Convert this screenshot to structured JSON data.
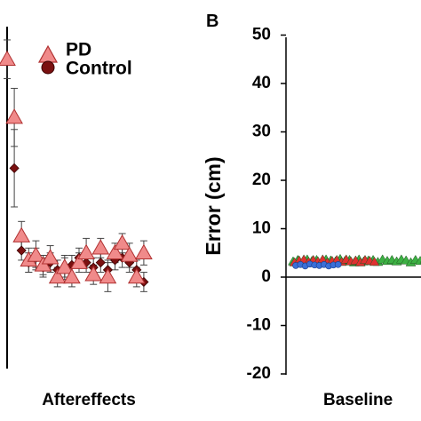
{
  "colors": {
    "pd_fill": "#f08a8a",
    "pd_stroke": "#b03030",
    "control_fill": "#7a1010",
    "control_stroke": "#3a0000",
    "error_bar": "#444444",
    "axis": "#000000",
    "green": "#3cb043",
    "red": "#e03030",
    "blue": "#3a6fd8"
  },
  "chart_data": [
    {
      "panel_label": "",
      "type": "scatter",
      "xlabel": "Aftereffects",
      "legend": {
        "placement": "top-right",
        "entries": [
          "PD",
          "Control"
        ]
      },
      "series": [
        {
          "name": "PD",
          "marker": "triangle",
          "points": [
            {
              "x": 0,
              "y": 45,
              "err": 4
            },
            {
              "x": 1,
              "y": 33,
              "err": 6
            },
            {
              "x": 2,
              "y": 8.5,
              "err": 3
            },
            {
              "x": 3,
              "y": 3.5,
              "err": 2.5
            },
            {
              "x": 4,
              "y": 4.5,
              "err": 3
            },
            {
              "x": 5,
              "y": 2.5,
              "err": 2
            },
            {
              "x": 6,
              "y": 4,
              "err": 2.5
            },
            {
              "x": 7,
              "y": 0,
              "err": 2
            },
            {
              "x": 8,
              "y": 2,
              "err": 2.5
            },
            {
              "x": 9,
              "y": 0,
              "err": 2
            },
            {
              "x": 10,
              "y": 3,
              "err": 2
            },
            {
              "x": 11,
              "y": 5,
              "err": 3
            },
            {
              "x": 12,
              "y": 0.5,
              "err": 2
            },
            {
              "x": 13,
              "y": 6,
              "err": 2
            },
            {
              "x": 14,
              "y": 0,
              "err": 3
            },
            {
              "x": 15,
              "y": 5,
              "err": 2
            },
            {
              "x": 16,
              "y": 7,
              "err": 2
            },
            {
              "x": 17,
              "y": 4.5,
              "err": 2.5
            },
            {
              "x": 18,
              "y": 0,
              "err": 2
            },
            {
              "x": 19,
              "y": 5,
              "err": 2.5
            }
          ]
        },
        {
          "name": "Control",
          "marker": "diamond",
          "points": [
            {
              "x": 1,
              "y": 22.5,
              "err": 8
            },
            {
              "x": 2,
              "y": 5.5,
              "err": 2
            },
            {
              "x": 3,
              "y": 3,
              "err": 2
            },
            {
              "x": 4,
              "y": 4,
              "err": 2
            },
            {
              "x": 5,
              "y": 2,
              "err": 2
            },
            {
              "x": 6,
              "y": 3,
              "err": 2
            },
            {
              "x": 7,
              "y": 1.5,
              "err": 2
            },
            {
              "x": 8,
              "y": 2,
              "err": 2
            },
            {
              "x": 9,
              "y": 2.5,
              "err": 2
            },
            {
              "x": 10,
              "y": 4,
              "err": 2
            },
            {
              "x": 11,
              "y": 3,
              "err": 2
            },
            {
              "x": 12,
              "y": 2,
              "err": 2
            },
            {
              "x": 13,
              "y": 3,
              "err": 2
            },
            {
              "x": 14,
              "y": 1.5,
              "err": 2
            },
            {
              "x": 15,
              "y": 3.5,
              "err": 2
            },
            {
              "x": 16,
              "y": 4,
              "err": 2
            },
            {
              "x": 17,
              "y": 3,
              "err": 2
            },
            {
              "x": 18,
              "y": 1.5,
              "err": 2
            },
            {
              "x": 19,
              "y": -1,
              "err": 2
            }
          ]
        }
      ]
    },
    {
      "panel_label": "B",
      "type": "scatter",
      "xlabel": "Baseline",
      "ylabel": "Error (cm)",
      "ylim": [
        -20,
        50
      ],
      "yticks": [
        "50",
        "40",
        "30",
        "20",
        "10",
        "0",
        "-10",
        "-20"
      ],
      "ytick_values": [
        50,
        40,
        30,
        20,
        10,
        0,
        -10,
        -20
      ],
      "series": [
        {
          "marker": "triangle",
          "color": "#3cb043",
          "values": [
            3.2,
            3.5,
            3.0,
            3.6,
            3.3,
            3.5,
            3.1,
            3.6,
            3.4,
            3.2,
            3.7,
            3.3,
            3.5,
            3.0,
            3.6,
            3.2,
            3.4,
            3.5,
            3.1,
            3.6,
            3.3,
            3.5,
            3.2,
            3.6,
            3.4,
            3.0,
            3.5,
            3.3,
            3.6,
            3.2
          ]
        },
        {
          "marker": "triangle",
          "color": "#e03030",
          "values": [
            3.0,
            3.4,
            3.6,
            3.1,
            3.5,
            3.2,
            3.6,
            3.0,
            3.3,
            3.5,
            3.1,
            3.6,
            3.2,
            3.4,
            3.0,
            3.5,
            3.3,
            3.1
          ]
        },
        {
          "marker": "circle",
          "color": "#3a6fd8",
          "values": [
            2.4,
            2.6,
            2.3,
            2.7,
            2.5,
            2.4,
            2.6,
            2.3,
            2.5,
            2.6
          ]
        }
      ]
    }
  ]
}
